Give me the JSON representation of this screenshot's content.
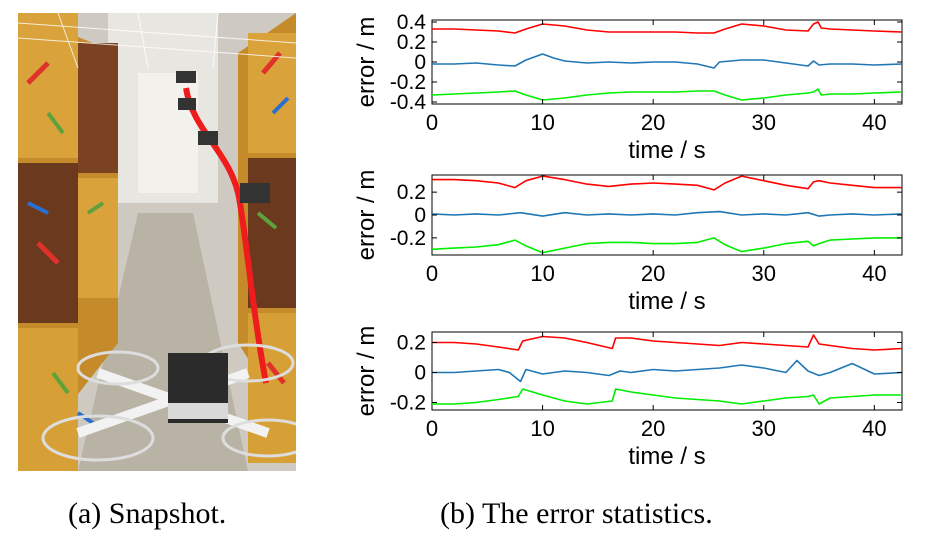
{
  "figure": {
    "caption_a": "(a) Snapshot.",
    "caption_b": "(b) The error statistics.",
    "snapshot_alt": "Drone flying through corridor of painted boxes"
  },
  "chart_data": [
    {
      "type": "line",
      "xlabel": "time / s",
      "ylabel": "error / m",
      "xlim": [
        0,
        42.5
      ],
      "ylim": [
        -0.42,
        0.42
      ],
      "xticks": [
        0,
        10,
        20,
        30,
        40
      ],
      "yticks": [
        0.4,
        0.2,
        0,
        -0.2,
        -0.4
      ],
      "ytick_labels": [
        "0.4",
        "0.2",
        "0",
        "-0.2",
        "-0.4"
      ],
      "series": [
        {
          "color": "#ff0000",
          "x": [
            0,
            2,
            4,
            6,
            7.5,
            8.5,
            10,
            12,
            14,
            16,
            18,
            20,
            22,
            24,
            25.5,
            26.5,
            28,
            30,
            32,
            34,
            34.5,
            34.9,
            35.2,
            36,
            38,
            40,
            42.5
          ],
          "y": [
            0.33,
            0.33,
            0.32,
            0.31,
            0.29,
            0.33,
            0.38,
            0.36,
            0.32,
            0.3,
            0.3,
            0.3,
            0.3,
            0.29,
            0.29,
            0.33,
            0.38,
            0.36,
            0.32,
            0.31,
            0.38,
            0.4,
            0.34,
            0.33,
            0.32,
            0.31,
            0.3
          ]
        },
        {
          "color": "#1f77b4",
          "x": [
            0,
            2,
            4,
            6,
            7.5,
            8.5,
            10,
            11,
            12,
            14,
            16,
            18,
            20,
            22,
            24,
            25.5,
            26,
            28,
            30,
            32,
            34,
            34.5,
            35,
            36,
            38,
            40,
            42.5
          ],
          "y": [
            -0.02,
            -0.02,
            -0.01,
            -0.03,
            -0.04,
            0.02,
            0.08,
            0.04,
            0.01,
            -0.01,
            0.0,
            -0.01,
            0.0,
            0.0,
            -0.02,
            -0.06,
            0.0,
            0.02,
            0.02,
            -0.01,
            -0.04,
            0.01,
            -0.03,
            -0.02,
            -0.02,
            -0.03,
            -0.02
          ]
        },
        {
          "color": "#00ee00",
          "x": [
            0,
            2,
            4,
            6,
            7.5,
            8.5,
            10,
            12,
            14,
            16,
            18,
            20,
            22,
            24,
            25.5,
            26.5,
            28,
            30,
            32,
            34,
            34.5,
            34.9,
            35.2,
            36,
            38,
            40,
            42.5
          ],
          "y": [
            -0.33,
            -0.32,
            -0.31,
            -0.3,
            -0.29,
            -0.33,
            -0.38,
            -0.36,
            -0.33,
            -0.31,
            -0.3,
            -0.3,
            -0.3,
            -0.29,
            -0.29,
            -0.33,
            -0.38,
            -0.36,
            -0.33,
            -0.31,
            -0.3,
            -0.27,
            -0.33,
            -0.32,
            -0.32,
            -0.31,
            -0.3
          ]
        }
      ]
    },
    {
      "type": "line",
      "xlabel": "time / s",
      "ylabel": "error / m",
      "xlim": [
        0,
        42.5
      ],
      "ylim": [
        -0.35,
        0.35
      ],
      "xticks": [
        0,
        10,
        20,
        30,
        40
      ],
      "yticks": [
        0.2,
        0,
        -0.2
      ],
      "ytick_labels": [
        "0.2",
        "0",
        "-0.2"
      ],
      "series": [
        {
          "color": "#ff0000",
          "x": [
            0,
            2,
            4,
            6,
            7.5,
            8.5,
            10,
            12,
            14,
            16,
            18,
            20,
            22,
            24,
            25.5,
            26.5,
            28,
            30,
            32,
            34,
            34.5,
            35,
            36,
            38,
            40,
            42.5
          ],
          "y": [
            0.31,
            0.31,
            0.3,
            0.28,
            0.24,
            0.3,
            0.34,
            0.31,
            0.27,
            0.25,
            0.27,
            0.28,
            0.27,
            0.26,
            0.22,
            0.28,
            0.34,
            0.3,
            0.26,
            0.23,
            0.29,
            0.3,
            0.28,
            0.26,
            0.24,
            0.24
          ]
        },
        {
          "color": "#1f77b4",
          "x": [
            0,
            2,
            4,
            6,
            8,
            10,
            12,
            14,
            16,
            18,
            20,
            22,
            24,
            26,
            28,
            30,
            32,
            34,
            35,
            36,
            38,
            40,
            42.5
          ],
          "y": [
            0.01,
            0.0,
            0.01,
            0.0,
            0.02,
            -0.01,
            0.02,
            0.0,
            0.01,
            0.0,
            0.01,
            0.0,
            0.02,
            0.03,
            0.0,
            0.01,
            0.0,
            0.02,
            -0.01,
            0.0,
            0.01,
            0.0,
            0.01
          ]
        },
        {
          "color": "#00ee00",
          "x": [
            0,
            2,
            4,
            6,
            7.5,
            8.5,
            10,
            12,
            14,
            16,
            18,
            20,
            22,
            24,
            25.5,
            26.5,
            28,
            30,
            32,
            34,
            34.5,
            35,
            36,
            38,
            40,
            42.5
          ],
          "y": [
            -0.3,
            -0.29,
            -0.28,
            -0.26,
            -0.22,
            -0.27,
            -0.33,
            -0.29,
            -0.25,
            -0.24,
            -0.24,
            -0.25,
            -0.25,
            -0.24,
            -0.2,
            -0.26,
            -0.32,
            -0.29,
            -0.25,
            -0.23,
            -0.27,
            -0.25,
            -0.22,
            -0.21,
            -0.2,
            -0.2
          ]
        }
      ]
    },
    {
      "type": "line",
      "xlabel": "time / s",
      "ylabel": "error / m",
      "xlim": [
        0,
        42.5
      ],
      "ylim": [
        -0.25,
        0.27
      ],
      "xticks": [
        0,
        10,
        20,
        30,
        40
      ],
      "yticks": [
        0.2,
        0,
        -0.2
      ],
      "ytick_labels": [
        "0.2",
        "0",
        "-0.2"
      ],
      "series": [
        {
          "color": "#ff0000",
          "x": [
            0,
            2,
            4,
            6,
            7.8,
            8.2,
            10,
            12,
            14,
            16.3,
            16.6,
            18,
            20,
            22,
            24,
            26,
            28,
            30,
            32,
            34,
            34.5,
            35,
            36,
            38,
            40,
            42.5
          ],
          "y": [
            0.2,
            0.2,
            0.19,
            0.17,
            0.15,
            0.21,
            0.24,
            0.23,
            0.2,
            0.16,
            0.23,
            0.23,
            0.21,
            0.2,
            0.19,
            0.18,
            0.2,
            0.19,
            0.18,
            0.17,
            0.25,
            0.19,
            0.18,
            0.16,
            0.15,
            0.16
          ]
        },
        {
          "color": "#1f77b4",
          "x": [
            0,
            2,
            4,
            6,
            7,
            8,
            8.5,
            10,
            12,
            14,
            16,
            17,
            18,
            20,
            22,
            24,
            26,
            28,
            30,
            32,
            33,
            34,
            35,
            36,
            38,
            40,
            42.5
          ],
          "y": [
            0.0,
            0.0,
            0.01,
            0.02,
            0.0,
            -0.06,
            0.02,
            -0.01,
            0.01,
            0.0,
            -0.02,
            0.01,
            0.0,
            0.02,
            0.01,
            0.02,
            0.03,
            0.05,
            0.03,
            0.0,
            0.08,
            0.01,
            -0.02,
            0.0,
            0.06,
            -0.01,
            0.0
          ]
        },
        {
          "color": "#00ee00",
          "x": [
            0,
            2,
            4,
            6,
            7.8,
            8.2,
            10,
            12,
            14,
            16.3,
            16.6,
            18,
            20,
            22,
            24,
            26,
            28,
            30,
            32,
            34,
            34.5,
            35,
            36,
            38,
            40,
            42.5
          ],
          "y": [
            -0.21,
            -0.21,
            -0.2,
            -0.18,
            -0.16,
            -0.11,
            -0.15,
            -0.19,
            -0.21,
            -0.19,
            -0.11,
            -0.13,
            -0.15,
            -0.17,
            -0.18,
            -0.19,
            -0.21,
            -0.19,
            -0.17,
            -0.16,
            -0.15,
            -0.21,
            -0.17,
            -0.16,
            -0.15,
            -0.15
          ]
        }
      ]
    }
  ]
}
